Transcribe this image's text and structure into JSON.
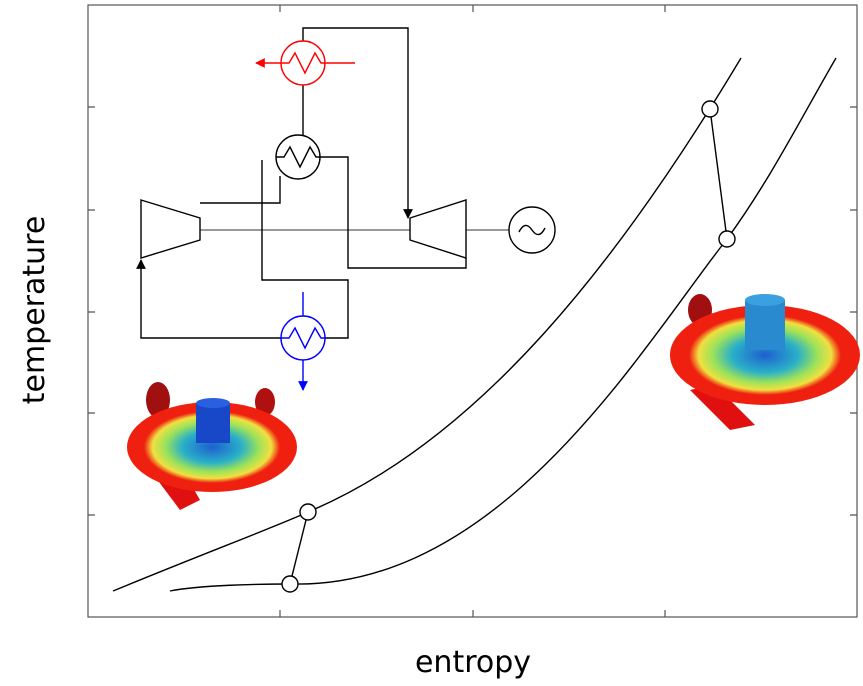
{
  "axes": {
    "y_label": "temperature",
    "x_label": "entropy"
  }
}
